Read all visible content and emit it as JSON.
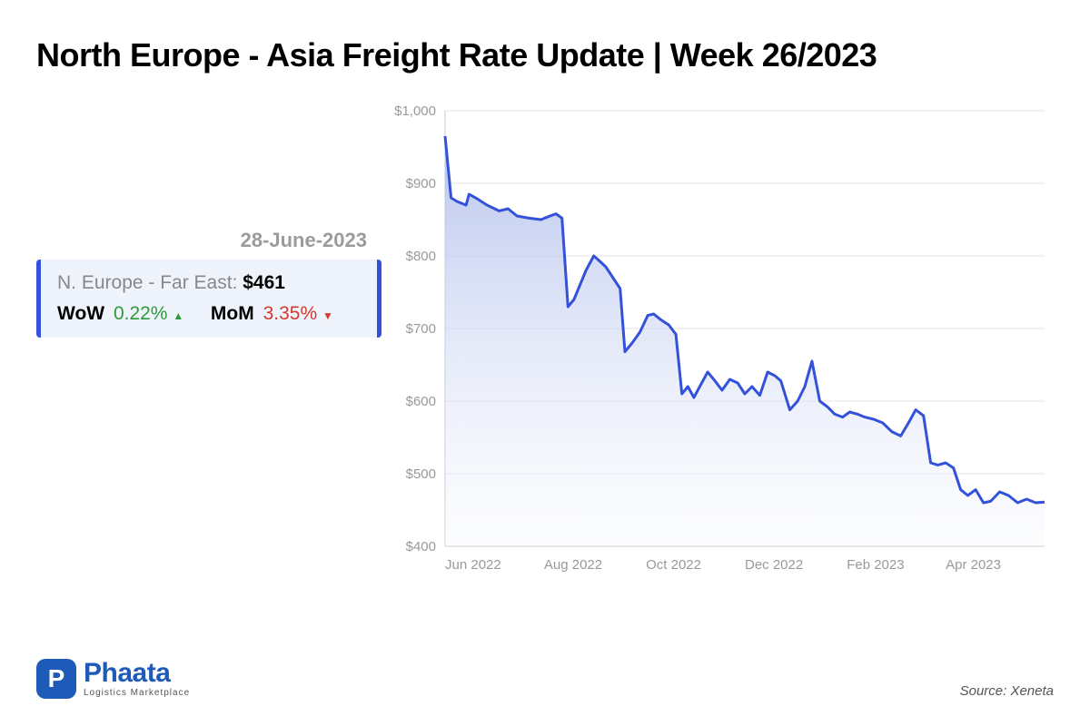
{
  "title": "North Europe - Asia Freight Rate Update | Week 26/2023",
  "date": "28-June-2023",
  "info": {
    "route": "N. Europe - Far East: ",
    "rate": "$461",
    "wow_label": "WoW",
    "wow_pct": "0.22%",
    "wow_dir": "up",
    "mom_label": "MoM",
    "mom_pct": "3.35%",
    "mom_dir": "down"
  },
  "chart": {
    "type": "area",
    "line_color": "#3452d9",
    "fill_top": "#aab9ea",
    "fill_bottom": "#eef2fb",
    "grid_color": "#e6e6e6",
    "axis_label_color": "#999999",
    "background_color": "#ffffff",
    "line_width": 3,
    "ylim": [
      400,
      1000
    ],
    "ytick_step": 100,
    "yticks": [
      "$400",
      "$500",
      "$600",
      "$700",
      "$800",
      "$900",
      "$1,000"
    ],
    "xticks": [
      "Jun 2022",
      "Aug 2022",
      "Oct 2022",
      "Dec 2022",
      "Feb 2023",
      "Apr 2023"
    ],
    "xtick_positions": [
      0,
      0.165,
      0.335,
      0.5,
      0.67,
      0.835
    ],
    "label_fontsize": 15,
    "series": [
      {
        "t": 0.0,
        "v": 965
      },
      {
        "t": 0.01,
        "v": 880
      },
      {
        "t": 0.02,
        "v": 875
      },
      {
        "t": 0.035,
        "v": 870
      },
      {
        "t": 0.04,
        "v": 885
      },
      {
        "t": 0.055,
        "v": 878
      },
      {
        "t": 0.07,
        "v": 870
      },
      {
        "t": 0.09,
        "v": 862
      },
      {
        "t": 0.105,
        "v": 865
      },
      {
        "t": 0.12,
        "v": 855
      },
      {
        "t": 0.14,
        "v": 852
      },
      {
        "t": 0.16,
        "v": 850
      },
      {
        "t": 0.175,
        "v": 855
      },
      {
        "t": 0.185,
        "v": 858
      },
      {
        "t": 0.195,
        "v": 852
      },
      {
        "t": 0.205,
        "v": 730
      },
      {
        "t": 0.215,
        "v": 740
      },
      {
        "t": 0.225,
        "v": 760
      },
      {
        "t": 0.235,
        "v": 780
      },
      {
        "t": 0.248,
        "v": 800
      },
      {
        "t": 0.255,
        "v": 795
      },
      {
        "t": 0.268,
        "v": 785
      },
      {
        "t": 0.28,
        "v": 770
      },
      {
        "t": 0.292,
        "v": 755
      },
      {
        "t": 0.3,
        "v": 668
      },
      {
        "t": 0.312,
        "v": 680
      },
      {
        "t": 0.325,
        "v": 695
      },
      {
        "t": 0.338,
        "v": 718
      },
      {
        "t": 0.348,
        "v": 720
      },
      {
        "t": 0.36,
        "v": 712
      },
      {
        "t": 0.373,
        "v": 705
      },
      {
        "t": 0.385,
        "v": 692
      },
      {
        "t": 0.395,
        "v": 610
      },
      {
        "t": 0.405,
        "v": 620
      },
      {
        "t": 0.415,
        "v": 605
      },
      {
        "t": 0.428,
        "v": 625
      },
      {
        "t": 0.438,
        "v": 640
      },
      {
        "t": 0.45,
        "v": 628
      },
      {
        "t": 0.462,
        "v": 615
      },
      {
        "t": 0.475,
        "v": 630
      },
      {
        "t": 0.488,
        "v": 625
      },
      {
        "t": 0.5,
        "v": 610
      },
      {
        "t": 0.512,
        "v": 620
      },
      {
        "t": 0.525,
        "v": 608
      },
      {
        "t": 0.538,
        "v": 640
      },
      {
        "t": 0.55,
        "v": 635
      },
      {
        "t": 0.56,
        "v": 628
      },
      {
        "t": 0.575,
        "v": 588
      },
      {
        "t": 0.588,
        "v": 600
      },
      {
        "t": 0.6,
        "v": 620
      },
      {
        "t": 0.612,
        "v": 655
      },
      {
        "t": 0.625,
        "v": 600
      },
      {
        "t": 0.638,
        "v": 592
      },
      {
        "t": 0.65,
        "v": 582
      },
      {
        "t": 0.663,
        "v": 578
      },
      {
        "t": 0.675,
        "v": 585
      },
      {
        "t": 0.688,
        "v": 582
      },
      {
        "t": 0.7,
        "v": 578
      },
      {
        "t": 0.715,
        "v": 575
      },
      {
        "t": 0.73,
        "v": 570
      },
      {
        "t": 0.745,
        "v": 558
      },
      {
        "t": 0.76,
        "v": 552
      },
      {
        "t": 0.773,
        "v": 570
      },
      {
        "t": 0.785,
        "v": 588
      },
      {
        "t": 0.798,
        "v": 580
      },
      {
        "t": 0.81,
        "v": 515
      },
      {
        "t": 0.822,
        "v": 512
      },
      {
        "t": 0.835,
        "v": 515
      },
      {
        "t": 0.848,
        "v": 508
      },
      {
        "t": 0.86,
        "v": 478
      },
      {
        "t": 0.872,
        "v": 470
      },
      {
        "t": 0.885,
        "v": 478
      },
      {
        "t": 0.898,
        "v": 460
      },
      {
        "t": 0.91,
        "v": 462
      },
      {
        "t": 0.925,
        "v": 475
      },
      {
        "t": 0.94,
        "v": 470
      },
      {
        "t": 0.955,
        "v": 460
      },
      {
        "t": 0.97,
        "v": 465
      },
      {
        "t": 0.985,
        "v": 460
      },
      {
        "t": 1.0,
        "v": 461
      }
    ]
  },
  "logo": {
    "glyph": "P",
    "name_bold": "Phaata",
    "tagline": "Logistics Marketplace"
  },
  "source": "Source: Xeneta",
  "colors": {
    "accent": "#3452d9",
    "up": "#2e9b3a",
    "down": "#d23a2e",
    "title": "#000000",
    "muted": "#9b9b9b",
    "logo": "#1e5bb8"
  }
}
